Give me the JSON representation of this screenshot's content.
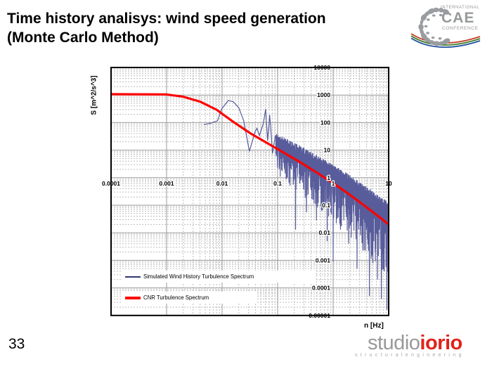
{
  "slide": {
    "title_line1": "Time history analisys: wind speed generation",
    "title_line2": "(Monte Carlo Method)",
    "page_number": "33",
    "background": "#ffffff"
  },
  "conference_logo": {
    "top": "INTERNATIONAL",
    "middle": "CAE",
    "bottom": "CONFERENCE",
    "text_color": "#96989a",
    "pebble_color": "#9a9da0",
    "arc_colors": [
      "#c43b26",
      "#3f7e2b",
      "#2250a0"
    ]
  },
  "studio_logo": {
    "part1": "studio",
    "part2": "iorio",
    "part1_color": "#98999b",
    "part2_color": "#e0231c",
    "subtitle": "structuralengineering"
  },
  "chart_data": {
    "type": "line",
    "title": "",
    "xlabel": "n [Hz]",
    "ylabel": "S [m^2/s^3]",
    "x_scale": "log",
    "y_scale": "log",
    "xlim": [
      0.0001,
      10
    ],
    "ylim": [
      1e-05,
      10000
    ],
    "x_tick_labels": [
      "0.0001",
      "0.001",
      "0.01",
      "0.1",
      "1",
      "10"
    ],
    "y_tick_labels": [
      "10000",
      "1000",
      "100",
      "10",
      "1",
      "0.1",
      "0.01",
      "0.001",
      "0.0001",
      "0.00001"
    ],
    "grid": {
      "major_color": "#9a9a9a",
      "minor_color": "#bdbdbd",
      "minor_style": "dashed",
      "axis_cross_x": 1,
      "axis_cross_y": 1
    },
    "legend_position": "inside-bottom-left",
    "series": [
      {
        "name": "Simulated Wind History Turbulence Spectrum",
        "color": "#585c9b",
        "legend_color": "#32386e",
        "type": "noisy-line",
        "intro_points": [
          [
            0.0047,
            85
          ],
          [
            0.0063,
            95
          ],
          [
            0.0083,
            117
          ],
          [
            0.0098,
            310
          ],
          [
            0.0129,
            630
          ],
          [
            0.0158,
            575
          ],
          [
            0.02,
            345
          ],
          [
            0.0245,
            118
          ],
          [
            0.031,
            9
          ],
          [
            0.039,
            45
          ],
          [
            0.0425,
            62
          ],
          [
            0.047,
            34
          ],
          [
            0.055,
            90
          ],
          [
            0.061,
            310
          ],
          [
            0.066,
            22
          ],
          [
            0.072,
            190
          ],
          [
            0.081,
            7.5
          ],
          [
            0.091,
            35
          ]
        ],
        "noise_band": {
          "x_start": 0.093,
          "x_end": 10,
          "points": 850,
          "seed": 11,
          "top_offset_decades": [
            0.55,
            0.8
          ],
          "bottom_offset_decades": [
            0.95,
            1.9
          ],
          "reference_series": "CNR Turbulence Spectrum"
        },
        "deep_spikes": [
          [
            0.21,
            0.013
          ],
          [
            0.33,
            0.056
          ],
          [
            0.5,
            0.028
          ],
          [
            0.62,
            0.063
          ],
          [
            0.78,
            0.005
          ],
          [
            1.0,
            0.0009
          ],
          [
            1.35,
            0.013
          ],
          [
            1.9,
            0.004
          ],
          [
            2.7,
            0.0005
          ],
          [
            3.3,
            0.005
          ],
          [
            4.5,
            5e-05
          ],
          [
            5.2,
            0.0008
          ],
          [
            6.3,
            0.0002
          ],
          [
            7.4,
            4e-05
          ],
          [
            8.3,
            0.0004
          ],
          [
            9.3,
            1.6e-05
          ],
          [
            9.9,
            5e-05
          ]
        ]
      },
      {
        "name": "CNR Turbulence Spectrum",
        "color": "#fe0000",
        "width": 3.2,
        "points": [
          [
            0.0001,
            1070
          ],
          [
            0.001,
            1050
          ],
          [
            0.002,
            870
          ],
          [
            0.004,
            575
          ],
          [
            0.0079,
            295
          ],
          [
            0.0158,
            107
          ],
          [
            0.0316,
            42
          ],
          [
            0.0631,
            18.6
          ],
          [
            0.1259,
            8.3
          ],
          [
            0.2512,
            3.7
          ],
          [
            0.5012,
            1.55
          ],
          [
            1,
            0.63
          ],
          [
            1.995,
            0.24
          ],
          [
            3.98,
            0.085
          ],
          [
            7.08,
            0.035
          ],
          [
            10,
            0.02
          ]
        ]
      }
    ]
  }
}
